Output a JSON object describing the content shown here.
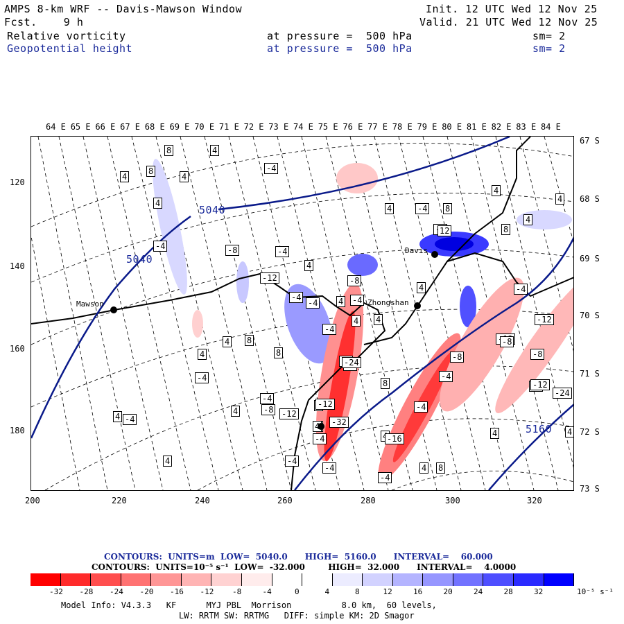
{
  "header": {
    "title": "AMPS 8-km WRF -- Davis-Mawson Window",
    "fcst_label": "Fcst.    9 h",
    "init": "Init. 12 UTC Wed 12 Nov 25",
    "valid": "Valid. 21 UTC Wed 12 Nov 25",
    "field1": "Relative vorticity",
    "field1_level": "at pressure =  500 hPa",
    "field1_sm": "sm= 2",
    "field2": "Geopotential height",
    "field2_level": "at pressure =  500 hPa",
    "field2_sm": "sm= 2"
  },
  "lon_labels": [
    "64 E",
    "65 E",
    "66 E",
    "67 E",
    "68 E",
    "69 E",
    "70 E",
    "71 E",
    "72 E",
    "73 E",
    "74 E",
    "75 E",
    "76 E",
    "77 E",
    "78 E",
    "79 E",
    "80 E",
    "81 E",
    "82 E",
    "83 E",
    "84 E"
  ],
  "lat_labels": [
    "67 S",
    "68 S",
    "69 S",
    "70 S",
    "71 S",
    "72 S",
    "73 S"
  ],
  "x_ticks": [
    "200",
    "220",
    "240",
    "260",
    "280",
    "300",
    "320"
  ],
  "y_ticks": [
    "120",
    "140",
    "160",
    "180"
  ],
  "stations": {
    "mawson": "Mawson",
    "davis": "Davis",
    "zhongshan": "Zhongshan"
  },
  "height_labels": [
    "5040",
    "5040",
    "5160"
  ],
  "vort_labels": [
    "8",
    "4",
    "4",
    "8",
    "4",
    "-4",
    "4",
    "4",
    "4",
    "-4",
    "8",
    "4",
    "-4",
    "-8",
    "-4",
    "4",
    "-8",
    "8",
    "4",
    "-12",
    "-4",
    "-4",
    "4",
    "-4",
    "4",
    "12",
    "-8",
    "-4",
    "4",
    "-4",
    "8",
    "4",
    "4",
    "-4",
    "-4",
    "-12",
    "-12",
    "-4",
    "8",
    "4",
    "4",
    "-4",
    "-8",
    "-24",
    "8",
    "-8",
    "-8",
    "-4",
    "4",
    "4",
    "-8",
    "-12",
    "4",
    "4",
    "-4",
    "4",
    "-4",
    "-4",
    "4",
    "-12",
    "-16",
    "-32",
    "4",
    "-4",
    "-24",
    "-12",
    "4",
    "8",
    "4",
    "-4",
    "-4",
    "-4"
  ],
  "footer": {
    "contours1": "CONTOURS:  UNITS=m  LOW=  5040.0      HIGH=  5160.0      INTERVAL=    60.000",
    "contours2": "CONTOURS:  UNITS=10⁻⁵ s⁻¹  LOW=  -32.000        HIGH=  32.000      INTERVAL=    4.0000",
    "model_info": "Model Info: V4.3.3   KF      MYJ PBL  Morrison          8.0 km,  60 levels,",
    "model_info2": "LW: RRTM SW: RRTMG   DIFF: simple KM: 2D Smagor"
  },
  "colorbar": {
    "ticks": [
      "-32",
      "-28",
      "-24",
      "-20",
      "-16",
      "-12",
      "-8",
      "-4",
      "0",
      "4",
      "8",
      "12",
      "16",
      "20",
      "24",
      "28",
      "32"
    ],
    "unit": "10⁻⁵ s⁻¹",
    "colors": [
      "#ff0000",
      "#ff2a2a",
      "#ff4e4e",
      "#ff7272",
      "#ff9696",
      "#ffb4b4",
      "#ffd2d2",
      "#ffecec",
      "#ffffff",
      "#ececff",
      "#d2d2ff",
      "#b4b4ff",
      "#9696ff",
      "#7272ff",
      "#4e4eff",
      "#2a2aff",
      "#0000ff"
    ]
  }
}
